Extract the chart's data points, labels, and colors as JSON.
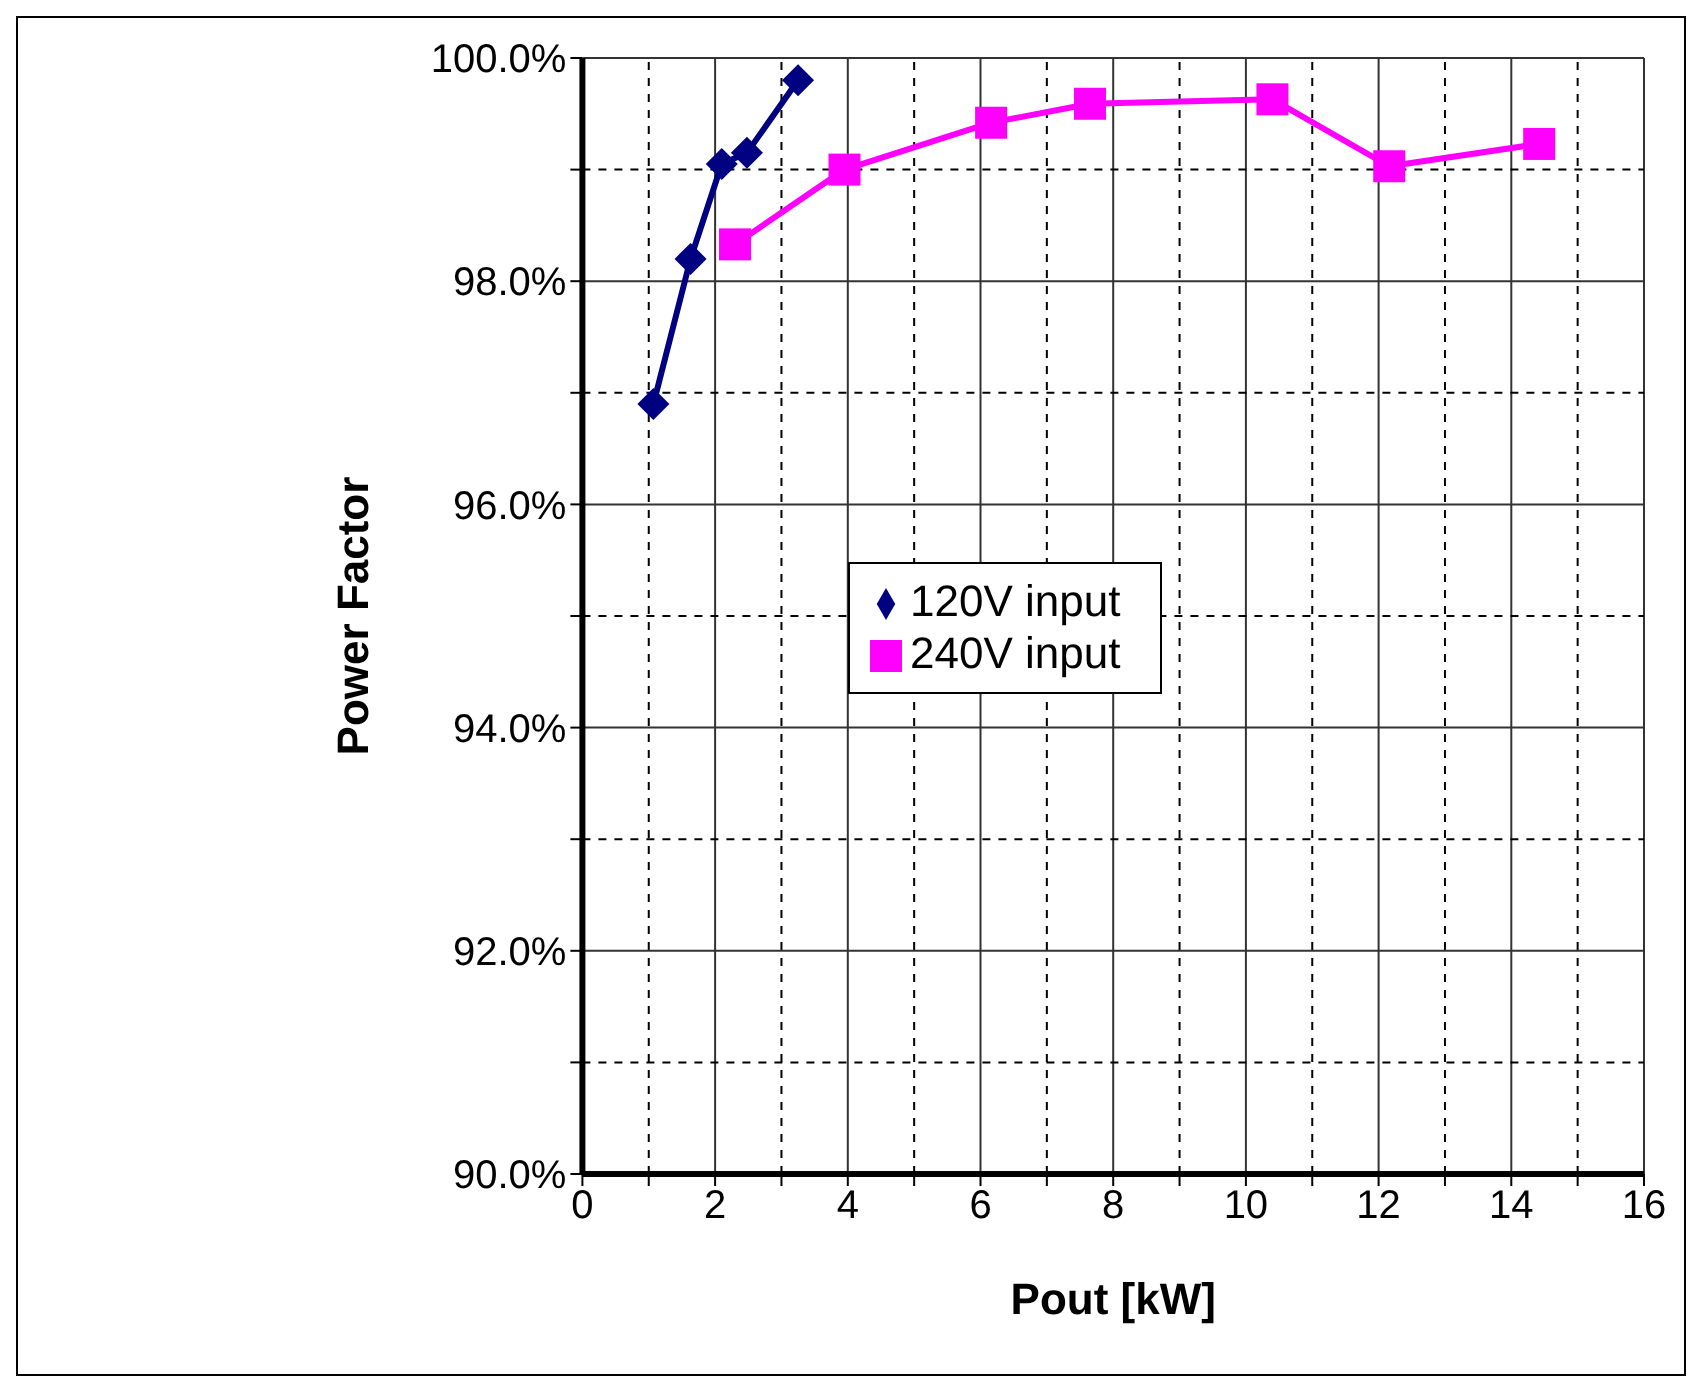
{
  "chart_data": {
    "type": "line",
    "xlabel": "Pout [kW]",
    "ylabel": "Power Factor",
    "xlim": [
      0,
      16
    ],
    "xticks": [
      0,
      {
        "value": 1,
        "label": null
      },
      2,
      {
        "value": 3,
        "label": null
      },
      4,
      {
        "value": 5,
        "label": null
      },
      6,
      {
        "value": 7,
        "label": null
      },
      8,
      {
        "value": 9,
        "label": null
      },
      10,
      {
        "value": 11,
        "label": null
      },
      12,
      {
        "value": 13,
        "label": null
      },
      14,
      {
        "value": 15,
        "label": null
      },
      16
    ],
    "ylim": [
      90,
      100
    ],
    "yticks": [
      {
        "value": 90,
        "label": "90.0%"
      },
      {
        "value": 91,
        "label": null
      },
      {
        "value": 92,
        "label": "92.0%"
      },
      {
        "value": 93,
        "label": null
      },
      {
        "value": 94,
        "label": "94.0%"
      },
      {
        "value": 95,
        "label": null
      },
      {
        "value": 96,
        "label": "96.0%"
      },
      {
        "value": 97,
        "label": null
      },
      {
        "value": 98,
        "label": "98.0%"
      },
      {
        "value": 99,
        "label": null
      },
      {
        "value": 100,
        "label": "100.0%"
      }
    ],
    "grid": true,
    "legend": "center",
    "series": [
      {
        "name": "120V input",
        "color": "#000080",
        "marker": "diamond",
        "x": [
          1.07,
          1.63,
          2.1,
          2.48,
          3.25
        ],
        "values": [
          96.9,
          98.2,
          99.05,
          99.15,
          99.8
        ]
      },
      {
        "name": "240V input",
        "color": "#ff00ff",
        "marker": "square",
        "x": [
          2.3,
          3.95,
          6.16,
          7.65,
          10.4,
          12.16,
          14.42
        ],
        "values": [
          98.33,
          99.0,
          99.42,
          99.59,
          99.63,
          99.03,
          99.23
        ]
      }
    ]
  }
}
